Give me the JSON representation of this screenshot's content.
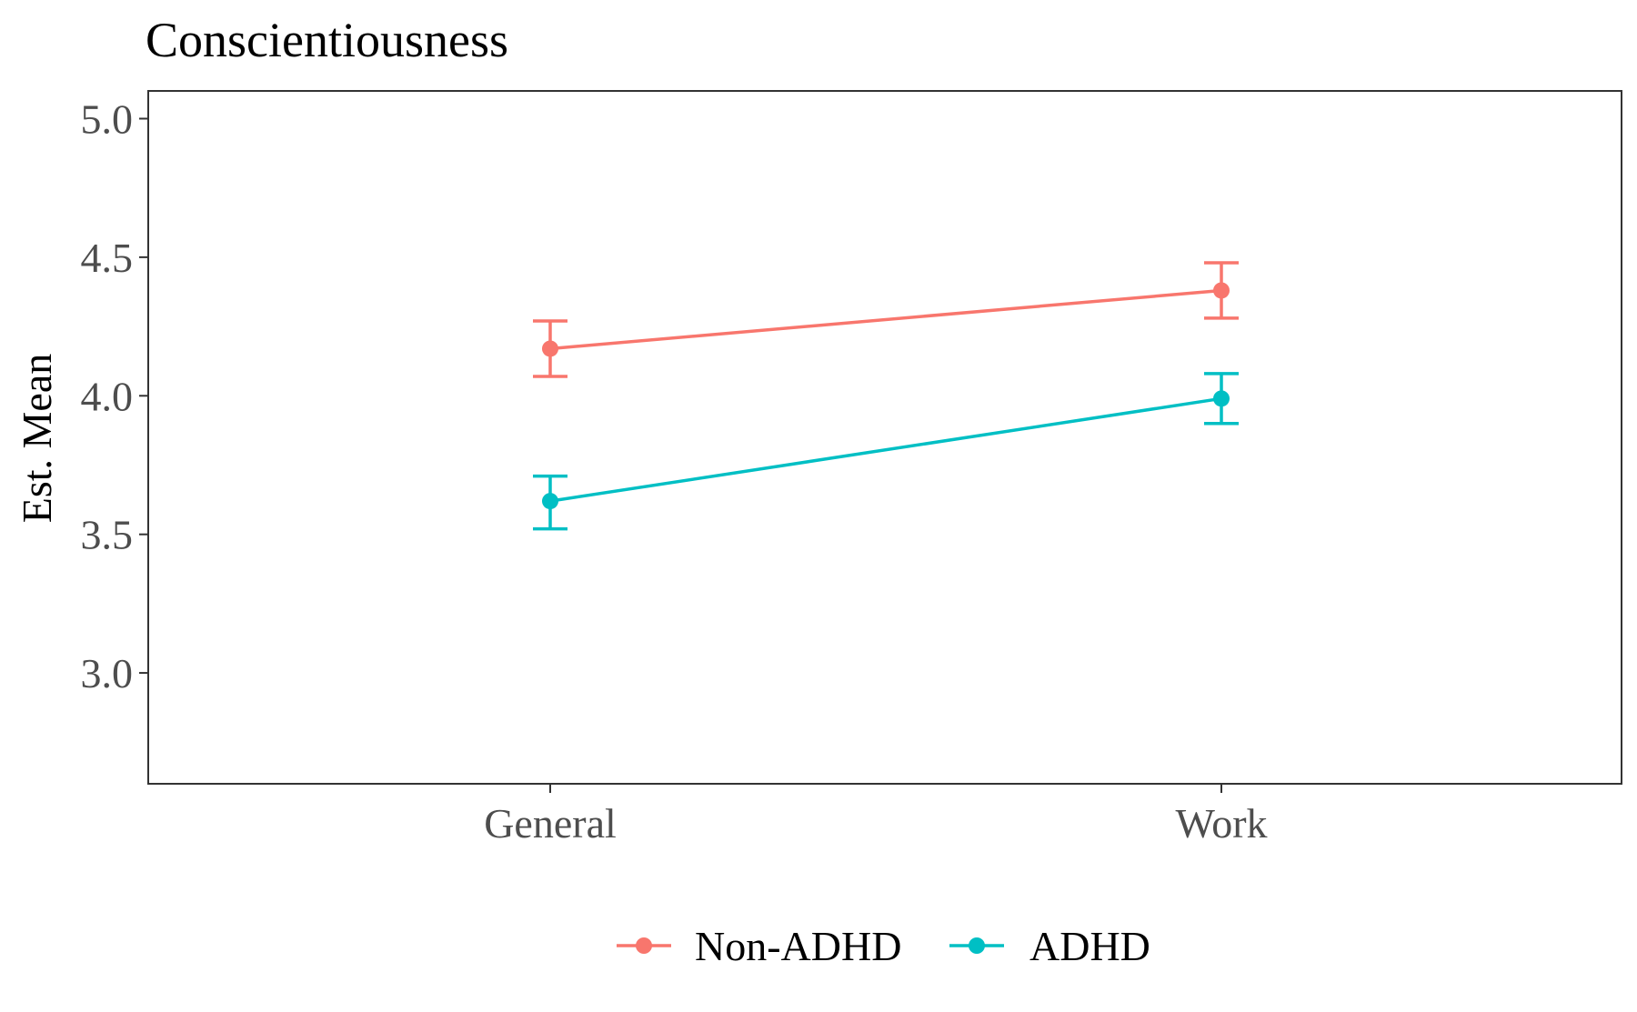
{
  "chart_data": {
    "type": "line",
    "title": "Conscientiousness",
    "xlabel": "",
    "ylabel": "Est. Mean",
    "categories": [
      "General",
      "Work"
    ],
    "ylim": [
      2.6,
      5.1
    ],
    "yticks": [
      "3.0",
      "3.5",
      "4.0",
      "4.5",
      "5.0"
    ],
    "grid": false,
    "legend_position": "bottom",
    "series": [
      {
        "name": "Non-ADHD",
        "color": "#F8766D",
        "values": [
          4.17,
          4.38
        ],
        "lower": [
          4.07,
          4.28
        ],
        "upper": [
          4.27,
          4.48
        ]
      },
      {
        "name": "ADHD",
        "color": "#00BFC4",
        "values": [
          3.62,
          3.99
        ],
        "lower": [
          3.52,
          3.9
        ],
        "upper": [
          3.71,
          4.08
        ]
      }
    ]
  }
}
